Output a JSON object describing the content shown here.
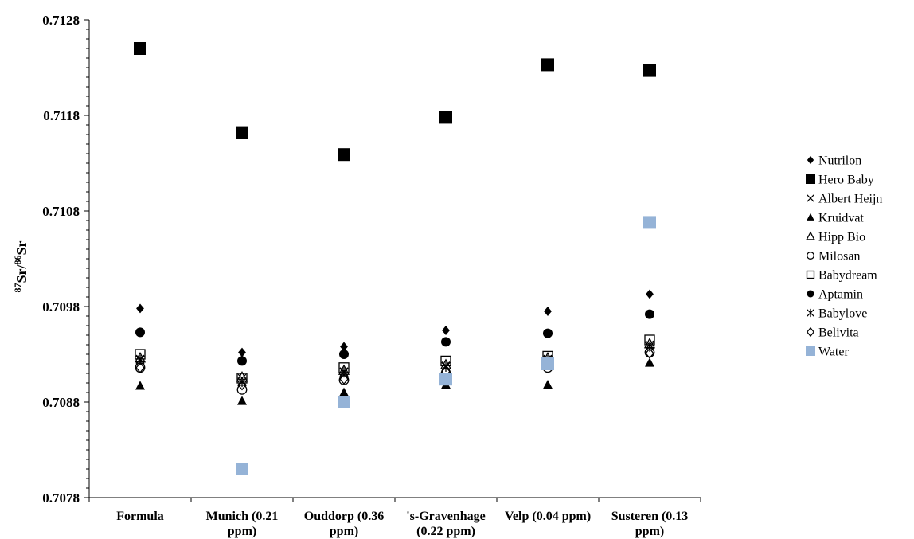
{
  "chart_data": {
    "type": "scatter",
    "ylabel": {
      "sup1": "87",
      "text1": "Sr/",
      "sup2": "86",
      "text2": "Sr"
    },
    "xlabel": "",
    "title": "",
    "ylim": [
      0.7078,
      0.7128
    ],
    "yticks": [
      "0.7078",
      "0.7088",
      "0.7098",
      "0.7108",
      "0.7118",
      "0.7128"
    ],
    "categories": [
      [
        "Formula"
      ],
      [
        "Munich (0.21",
        "ppm)"
      ],
      [
        "Ouddorp (0.36",
        "ppm)"
      ],
      [
        "'s-Gravenhage",
        "(0.22 ppm)"
      ],
      [
        "Velp (0.04 ppm)"
      ],
      [
        "Susteren (0.13",
        "ppm)"
      ]
    ],
    "legend_position": "right",
    "series": [
      {
        "name": "Nutrilon",
        "marker": "diamond-filled",
        "color": "#000000",
        "values": [
          0.70978,
          0.70932,
          0.70938,
          0.70955,
          0.70975,
          0.70993
        ]
      },
      {
        "name": "Hero Baby",
        "marker": "square-filled",
        "color": "#000000",
        "values": [
          0.7125,
          0.71162,
          0.71139,
          0.71178,
          0.71233,
          0.71227
        ]
      },
      {
        "name": "Albert Heijn",
        "marker": "x",
        "color": "#000000",
        "values": [
          0.70925,
          0.70905,
          0.70912,
          0.70918,
          0.70925,
          0.7094
        ]
      },
      {
        "name": "Kruidvat",
        "marker": "triangle-filled",
        "color": "#000000",
        "values": [
          0.70897,
          0.70881,
          0.7089,
          0.70898,
          0.70898,
          0.70921
        ]
      },
      {
        "name": "Hipp Bio",
        "marker": "triangle-open",
        "color": "#000000",
        "values": [
          0.70926,
          0.70906,
          0.70913,
          0.70919,
          0.70926,
          0.70941
        ]
      },
      {
        "name": "Milosan",
        "marker": "circle-open",
        "color": "#000000",
        "values": [
          0.70916,
          0.70893,
          0.70903,
          0.7091,
          0.70916,
          0.70932
        ]
      },
      {
        "name": "Babydream",
        "marker": "square-open",
        "color": "#000000",
        "values": [
          0.7093,
          0.70905,
          0.70916,
          0.70923,
          0.70928,
          0.70945
        ]
      },
      {
        "name": "Aptamin",
        "marker": "circle-filled",
        "color": "#000000",
        "values": [
          0.70953,
          0.70923,
          0.7093,
          0.70943,
          0.70952,
          0.70972
        ]
      },
      {
        "name": "Babylove",
        "marker": "asterisk",
        "color": "#000000",
        "values": [
          0.70924,
          0.70901,
          0.70911,
          0.70917,
          0.70924,
          0.70938
        ]
      },
      {
        "name": "Belivita",
        "marker": "diamond-open",
        "color": "#000000",
        "values": [
          0.70916,
          0.70898,
          0.70904,
          0.70912,
          0.70921,
          0.70931
        ]
      },
      {
        "name": "Water",
        "marker": "square-filled",
        "color": "#95b3d7",
        "values": [
          null,
          0.7081,
          0.7088,
          0.70904,
          0.7092,
          0.71068
        ]
      }
    ]
  }
}
